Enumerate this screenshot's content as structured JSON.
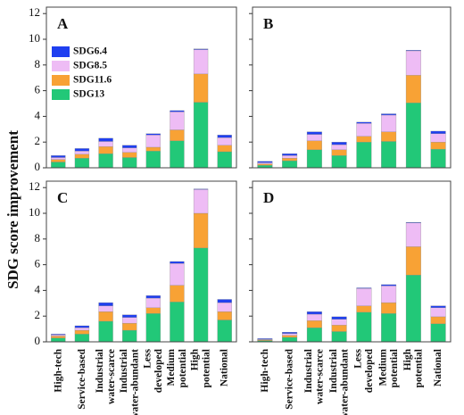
{
  "y_label": "SDG score improvement",
  "chart_data": [
    {
      "type": "stacked_bar",
      "title": "A",
      "categories": [
        null,
        null,
        null,
        null,
        null,
        null,
        null,
        null
      ],
      "series": [
        {
          "name": "SDG6.4",
          "color": "#1f3ff0",
          "values": [
            0.15,
            0.2,
            0.25,
            0.2,
            0.1,
            0.1,
            0.05,
            0.2
          ]
        },
        {
          "name": "SDG8.5",
          "color": "#eebcf5",
          "values": [
            0.15,
            0.25,
            0.4,
            0.35,
            0.95,
            1.4,
            1.9,
            0.6
          ]
        },
        {
          "name": "SDG11.6",
          "color": "#f8a235",
          "values": [
            0.2,
            0.3,
            0.55,
            0.4,
            0.3,
            0.85,
            2.2,
            0.5
          ]
        },
        {
          "name": "SDG13",
          "color": "#22c878",
          "values": [
            0.45,
            0.75,
            1.1,
            0.8,
            1.3,
            2.1,
            5.1,
            1.25
          ]
        }
      ],
      "ylim": [
        0,
        12.5
      ],
      "yticks": [
        0,
        2,
        4,
        6,
        8,
        10,
        12
      ],
      "show_ytick_labels": true,
      "legend": "upper left"
    },
    {
      "type": "stacked_bar",
      "title": "B",
      "categories": [
        null,
        null,
        null,
        null,
        null,
        null,
        null,
        null
      ],
      "series": [
        {
          "color": "#1f3ff0",
          "values": [
            0.1,
            0.15,
            0.2,
            0.2,
            0.1,
            0.1,
            0.05,
            0.2
          ]
        },
        {
          "color": "#eebcf5",
          "values": [
            0.1,
            0.2,
            0.5,
            0.4,
            1.0,
            1.3,
            1.9,
            0.65
          ]
        },
        {
          "color": "#f8a235",
          "values": [
            0.1,
            0.2,
            0.7,
            0.45,
            0.45,
            0.75,
            2.15,
            0.55
          ]
        },
        {
          "color": "#22c878",
          "values": [
            0.2,
            0.55,
            1.4,
            0.95,
            2.0,
            2.05,
            5.05,
            1.45
          ]
        }
      ],
      "ylim": [
        0,
        12.5
      ],
      "yticks": [
        0,
        2,
        4,
        6,
        8,
        10,
        12
      ],
      "show_ytick_labels": false
    },
    {
      "type": "stacked_bar",
      "title": "C",
      "categories": [
        "High-tech",
        "Service-based",
        "Industrial\nwater-scarce",
        "Industrial\nwater-abundant",
        "Less\ndeveloped",
        "Medium\npotential",
        "High\npotential",
        "National"
      ],
      "series": [
        {
          "color": "#1f3ff0",
          "values": [
            0.05,
            0.15,
            0.25,
            0.2,
            0.2,
            0.15,
            0.05,
            0.25
          ]
        },
        {
          "color": "#eebcf5",
          "values": [
            0.1,
            0.2,
            0.45,
            0.45,
            0.75,
            1.7,
            1.85,
            0.7
          ]
        },
        {
          "color": "#f8a235",
          "values": [
            0.15,
            0.3,
            0.75,
            0.55,
            0.45,
            1.3,
            2.7,
            0.65
          ]
        },
        {
          "color": "#22c878",
          "values": [
            0.3,
            0.6,
            1.6,
            0.9,
            2.2,
            3.1,
            7.3,
            1.7
          ]
        }
      ],
      "ylim": [
        0,
        12.5
      ],
      "yticks": [
        0,
        2,
        4,
        6,
        8,
        10,
        12
      ],
      "show_ytick_labels": true
    },
    {
      "type": "stacked_bar",
      "title": "D",
      "categories": [
        "High-tech",
        "Service-based",
        "Industrial\nwater-scarce",
        "Industrial\nwater-abundant",
        "Less\ndeveloped",
        "Medium\npotential",
        "High\npotential",
        "National"
      ],
      "series": [
        {
          "color": "#1f3ff0",
          "values": [
            0.05,
            0.1,
            0.2,
            0.2,
            0.05,
            0.1,
            0.05,
            0.15
          ]
        },
        {
          "color": "#eebcf5",
          "values": [
            0.05,
            0.15,
            0.5,
            0.45,
            1.35,
            1.3,
            1.85,
            0.7
          ]
        },
        {
          "color": "#f8a235",
          "values": [
            0.05,
            0.15,
            0.55,
            0.5,
            0.5,
            0.85,
            2.2,
            0.55
          ]
        },
        {
          "color": "#22c878",
          "values": [
            0.1,
            0.35,
            1.1,
            0.8,
            2.3,
            2.2,
            5.2,
            1.4
          ]
        }
      ],
      "ylim": [
        0,
        12.5
      ],
      "yticks": [
        0,
        2,
        4,
        6,
        8,
        10,
        12
      ],
      "show_ytick_labels": false
    }
  ]
}
